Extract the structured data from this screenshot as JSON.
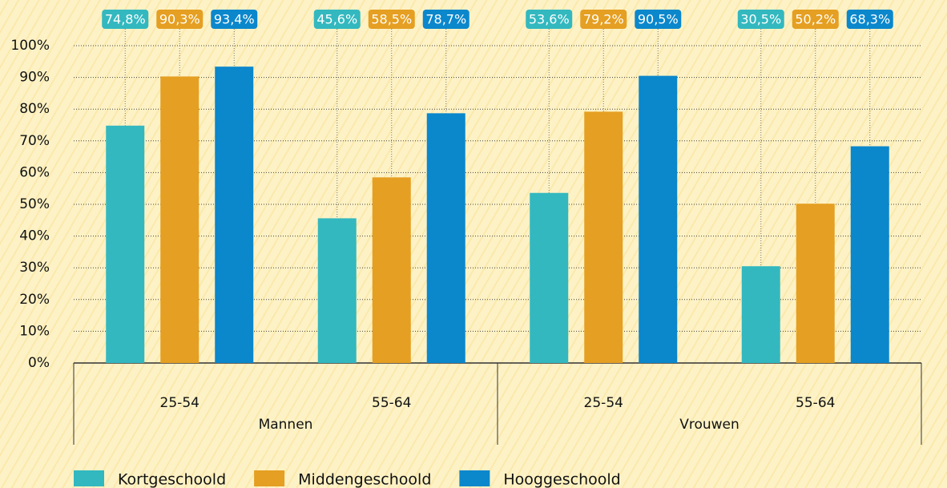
{
  "chart_data": {
    "type": "bar",
    "categories": [
      "25-54",
      "55-64",
      "25-54",
      "55-64"
    ],
    "category_groups": [
      "Mannen",
      "Vrouwen"
    ],
    "series": [
      {
        "name": "Kortgeschoold",
        "color": "#33b8bf",
        "values": [
          74.8,
          45.6,
          53.6,
          30.5
        ],
        "value_labels": [
          "74,8%",
          "45,6%",
          "53,6%",
          "30,5%"
        ]
      },
      {
        "name": "Middengeschoold",
        "color": "#e59f22",
        "values": [
          90.3,
          58.5,
          79.2,
          50.2
        ],
        "value_labels": [
          "90,3%",
          "58,5%",
          "79,2%",
          "50,2%"
        ]
      },
      {
        "name": "Hooggeschoold",
        "color": "#0b87cc",
        "values": [
          93.4,
          78.7,
          90.5,
          68.3
        ],
        "value_labels": [
          "93,4%",
          "78,7%",
          "90,5%",
          "68,3%"
        ]
      }
    ],
    "ylim": [
      0,
      100
    ],
    "yticks": [
      {
        "value": 0,
        "label": "0%"
      },
      {
        "value": 10,
        "label": "10%"
      },
      {
        "value": 20,
        "label": "20%"
      },
      {
        "value": 30,
        "label": "30%"
      },
      {
        "value": 40,
        "label": "40%"
      },
      {
        "value": 50,
        "label": "50%"
      },
      {
        "value": 60,
        "label": "60%"
      },
      {
        "value": 70,
        "label": "70%"
      },
      {
        "value": 80,
        "label": "80%"
      },
      {
        "value": 90,
        "label": "90%"
      },
      {
        "value": 100,
        "label": "100%"
      }
    ],
    "grid": true,
    "legend": "bottom"
  }
}
